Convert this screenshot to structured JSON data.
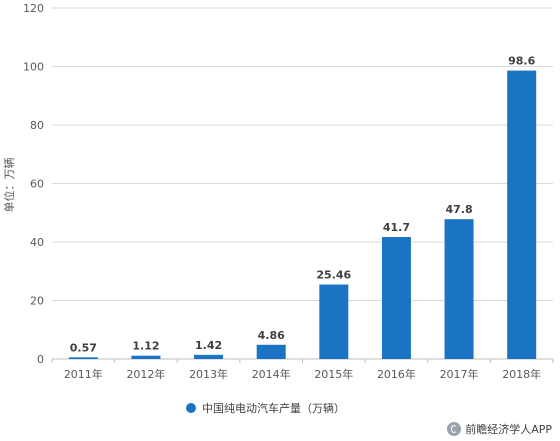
{
  "chart_data": {
    "type": "bar",
    "categories": [
      "2011年",
      "2012年",
      "2013年",
      "2014年",
      "2015年",
      "2016年",
      "2017年",
      "2018年"
    ],
    "series": [
      {
        "name": "中国纯电动汽车产量（万辆）",
        "values": [
          0.57,
          1.12,
          1.42,
          4.86,
          25.46,
          41.7,
          47.8,
          98.6
        ],
        "labels": [
          "0.57",
          "1.12",
          "1.42",
          "4.86",
          "25.46",
          "41.7",
          "47.8",
          "98.6"
        ]
      }
    ],
    "ylabel": "单位：万辆",
    "ylim": [
      0,
      120
    ],
    "yticks": [
      0,
      20,
      40,
      60,
      80,
      100,
      120
    ],
    "grid": true,
    "legend_position": "bottom",
    "bar_color": "#1a74c3",
    "grid_color": "#d9d9d9"
  },
  "footer": {
    "icon": "qianzhan-logo-icon",
    "text": "前瞻经济学人APP"
  }
}
